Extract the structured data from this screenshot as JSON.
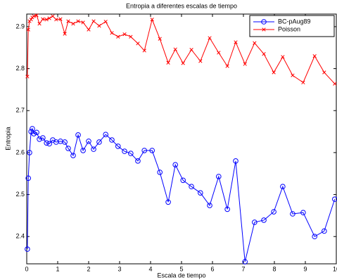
{
  "chart_data": {
    "type": "line",
    "title": "Entropia a diferentes escalas de tiempo",
    "xlabel": "Escala de tiempo",
    "ylabel": "Entropia",
    "xlim": [
      0,
      10
    ],
    "xticks": [
      0,
      1,
      2,
      3,
      4,
      5,
      6,
      7,
      8,
      9,
      10
    ],
    "ylim": [
      2.335,
      2.93
    ],
    "yticks": [
      2.4,
      2.5,
      2.6,
      2.7,
      2.8,
      2.9
    ],
    "legend": "upper right",
    "x": [
      0.02,
      0.05,
      0.09,
      0.14,
      0.18,
      0.23,
      0.32,
      0.41,
      0.52,
      0.64,
      0.73,
      0.84,
      0.95,
      1.09,
      1.23,
      1.34,
      1.5,
      1.66,
      1.82,
      2.0,
      2.16,
      2.34,
      2.55,
      2.75,
      2.95,
      3.16,
      3.36,
      3.59,
      3.8,
      4.05,
      4.3,
      4.57,
      4.8,
      5.05,
      5.32,
      5.61,
      5.91,
      6.2,
      6.48,
      6.75,
      7.05,
      7.36,
      7.66,
      7.98,
      8.27,
      8.59,
      8.93,
      9.3,
      9.61,
      9.95
    ],
    "series": [
      {
        "name": "BC-pAug89",
        "color": "#0000ff",
        "marker": "circle",
        "values": [
          2.37,
          2.539,
          2.6,
          2.65,
          2.657,
          2.645,
          2.648,
          2.632,
          2.635,
          2.623,
          2.621,
          2.63,
          2.625,
          2.627,
          2.625,
          2.61,
          2.593,
          2.642,
          2.605,
          2.627,
          2.608,
          2.625,
          2.643,
          2.63,
          2.615,
          2.603,
          2.598,
          2.58,
          2.605,
          2.605,
          2.553,
          2.482,
          2.571,
          2.534,
          2.519,
          2.504,
          2.474,
          2.543,
          2.465,
          2.58,
          2.34,
          2.434,
          2.439,
          2.459,
          2.519,
          2.454,
          2.457,
          2.4,
          2.413,
          2.489
        ]
      },
      {
        "name": "Poisson",
        "color": "#ff0000",
        "marker": "x",
        "values": [
          2.781,
          2.893,
          2.913,
          2.917,
          2.922,
          2.925,
          2.927,
          2.907,
          2.918,
          2.917,
          2.92,
          2.925,
          2.917,
          2.918,
          2.883,
          2.913,
          2.907,
          2.913,
          2.91,
          2.893,
          2.913,
          2.902,
          2.912,
          2.885,
          2.876,
          2.882,
          2.876,
          2.86,
          2.843,
          2.917,
          2.871,
          2.814,
          2.846,
          2.813,
          2.845,
          2.818,
          2.873,
          2.838,
          2.806,
          2.863,
          2.811,
          2.861,
          2.835,
          2.791,
          2.828,
          2.784,
          2.767,
          2.83,
          2.791,
          2.764
        ]
      }
    ]
  }
}
